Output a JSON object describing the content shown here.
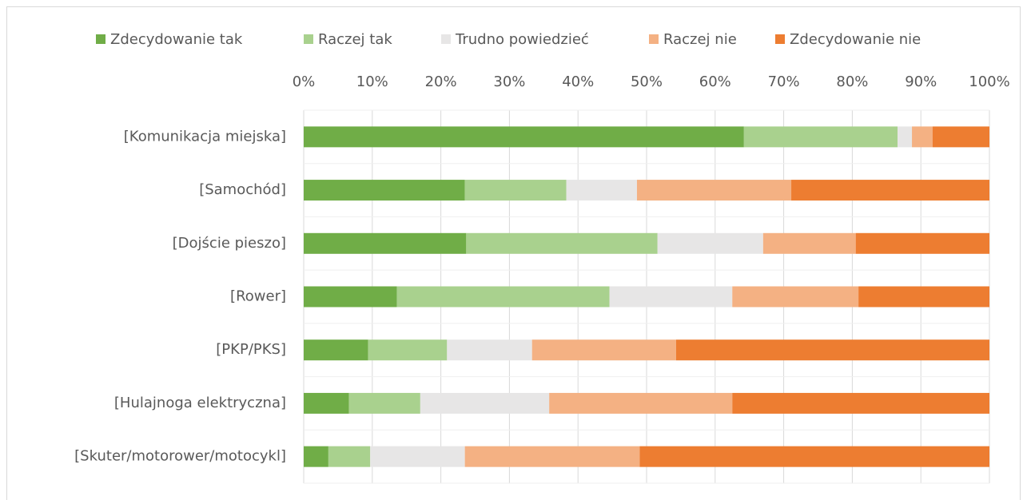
{
  "chart_data": {
    "type": "stacked-bar-horizontal",
    "categories": [
      "[Komunikacja miejska]",
      "[Samochód]",
      "[Dojście pieszo]",
      "[Rower]",
      "[PKP/PKS]",
      "[Hulajnoga elektryczna]",
      "[Skuter/motorower/motocykl]"
    ],
    "series": [
      {
        "name": "Zdecydowanie tak",
        "color": "#70ad47",
        "values": [
          64.2,
          23.5,
          23.7,
          13.6,
          9.4,
          6.6,
          3.6
        ]
      },
      {
        "name": "Raczej tak",
        "color": "#a9d18e",
        "values": [
          22.4,
          14.8,
          27.9,
          31.0,
          11.5,
          10.4,
          6.1
        ]
      },
      {
        "name": "Trudno powiedzieć",
        "color": "#e7e6e6",
        "values": [
          2.1,
          10.3,
          15.4,
          17.9,
          12.4,
          18.8,
          13.8
        ]
      },
      {
        "name": "Raczej nie",
        "color": "#f4b183",
        "values": [
          3.0,
          22.5,
          13.5,
          18.4,
          21.0,
          26.7,
          25.5
        ]
      },
      {
        "name": "Zdecydowanie nie",
        "color": "#ed7d31",
        "values": [
          8.3,
          28.9,
          19.5,
          19.1,
          45.7,
          37.5,
          51.0
        ]
      }
    ],
    "xlim": [
      0,
      100
    ],
    "xticks": [
      {
        "value": 0,
        "label": "0%"
      },
      {
        "value": 10,
        "label": "10%"
      },
      {
        "value": 20,
        "label": "20%"
      },
      {
        "value": 30,
        "label": "30%"
      },
      {
        "value": 40,
        "label": "40%"
      },
      {
        "value": 50,
        "label": "50%"
      },
      {
        "value": 60,
        "label": "60%"
      },
      {
        "value": 70,
        "label": "70%"
      },
      {
        "value": 80,
        "label": "80%"
      },
      {
        "value": 90,
        "label": "90%"
      },
      {
        "value": 100,
        "label": "100%"
      }
    ],
    "grid": true,
    "legend": "top"
  }
}
